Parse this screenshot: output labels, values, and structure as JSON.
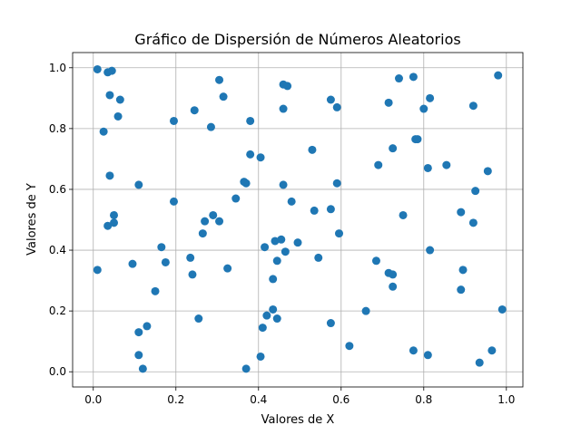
{
  "chart_data": {
    "type": "scatter",
    "title": "Gráfico de Dispersión de Números Aleatorios",
    "xlabel": "Valores de X",
    "ylabel": "Valores de Y",
    "xlim": [
      -0.05,
      1.04
    ],
    "ylim": [
      -0.05,
      1.05
    ],
    "xticks": [
      "0.0",
      "0.2",
      "0.4",
      "0.6",
      "0.8",
      "1.0"
    ],
    "yticks": [
      "0.0",
      "0.2",
      "0.4",
      "0.6",
      "0.8",
      "1.0"
    ],
    "grid": true,
    "marker_color": "#1f77b4",
    "points": [
      {
        "x": 0.01,
        "y": 0.995
      },
      {
        "x": 0.035,
        "y": 0.985
      },
      {
        "x": 0.045,
        "y": 0.99
      },
      {
        "x": 0.025,
        "y": 0.79
      },
      {
        "x": 0.04,
        "y": 0.91
      },
      {
        "x": 0.065,
        "y": 0.895
      },
      {
        "x": 0.06,
        "y": 0.84
      },
      {
        "x": 0.04,
        "y": 0.645
      },
      {
        "x": 0.05,
        "y": 0.515
      },
      {
        "x": 0.035,
        "y": 0.48
      },
      {
        "x": 0.05,
        "y": 0.49
      },
      {
        "x": 0.01,
        "y": 0.335
      },
      {
        "x": 0.11,
        "y": 0.615
      },
      {
        "x": 0.095,
        "y": 0.355
      },
      {
        "x": 0.165,
        "y": 0.41
      },
      {
        "x": 0.175,
        "y": 0.36
      },
      {
        "x": 0.15,
        "y": 0.265
      },
      {
        "x": 0.13,
        "y": 0.15
      },
      {
        "x": 0.11,
        "y": 0.13
      },
      {
        "x": 0.11,
        "y": 0.055
      },
      {
        "x": 0.12,
        "y": 0.01
      },
      {
        "x": 0.195,
        "y": 0.825
      },
      {
        "x": 0.195,
        "y": 0.56
      },
      {
        "x": 0.245,
        "y": 0.86
      },
      {
        "x": 0.285,
        "y": 0.805
      },
      {
        "x": 0.305,
        "y": 0.96
      },
      {
        "x": 0.315,
        "y": 0.905
      },
      {
        "x": 0.27,
        "y": 0.495
      },
      {
        "x": 0.29,
        "y": 0.515
      },
      {
        "x": 0.305,
        "y": 0.495
      },
      {
        "x": 0.265,
        "y": 0.455
      },
      {
        "x": 0.235,
        "y": 0.375
      },
      {
        "x": 0.24,
        "y": 0.32
      },
      {
        "x": 0.255,
        "y": 0.175
      },
      {
        "x": 0.325,
        "y": 0.34
      },
      {
        "x": 0.345,
        "y": 0.57
      },
      {
        "x": 0.365,
        "y": 0.625
      },
      {
        "x": 0.37,
        "y": 0.62
      },
      {
        "x": 0.38,
        "y": 0.825
      },
      {
        "x": 0.38,
        "y": 0.715
      },
      {
        "x": 0.405,
        "y": 0.705
      },
      {
        "x": 0.37,
        "y": 0.01
      },
      {
        "x": 0.405,
        "y": 0.05
      },
      {
        "x": 0.415,
        "y": 0.41
      },
      {
        "x": 0.44,
        "y": 0.43
      },
      {
        "x": 0.455,
        "y": 0.435
      },
      {
        "x": 0.445,
        "y": 0.365
      },
      {
        "x": 0.465,
        "y": 0.395
      },
      {
        "x": 0.435,
        "y": 0.305
      },
      {
        "x": 0.435,
        "y": 0.205
      },
      {
        "x": 0.42,
        "y": 0.185
      },
      {
        "x": 0.445,
        "y": 0.175
      },
      {
        "x": 0.41,
        "y": 0.145
      },
      {
        "x": 0.46,
        "y": 0.945
      },
      {
        "x": 0.47,
        "y": 0.94
      },
      {
        "x": 0.46,
        "y": 0.865
      },
      {
        "x": 0.46,
        "y": 0.615
      },
      {
        "x": 0.48,
        "y": 0.56
      },
      {
        "x": 0.495,
        "y": 0.425
      },
      {
        "x": 0.53,
        "y": 0.73
      },
      {
        "x": 0.535,
        "y": 0.53
      },
      {
        "x": 0.545,
        "y": 0.375
      },
      {
        "x": 0.575,
        "y": 0.895
      },
      {
        "x": 0.59,
        "y": 0.87
      },
      {
        "x": 0.59,
        "y": 0.62
      },
      {
        "x": 0.575,
        "y": 0.535
      },
      {
        "x": 0.595,
        "y": 0.455
      },
      {
        "x": 0.575,
        "y": 0.16
      },
      {
        "x": 0.62,
        "y": 0.085
      },
      {
        "x": 0.66,
        "y": 0.2
      },
      {
        "x": 0.685,
        "y": 0.365
      },
      {
        "x": 0.69,
        "y": 0.68
      },
      {
        "x": 0.715,
        "y": 0.885
      },
      {
        "x": 0.74,
        "y": 0.965
      },
      {
        "x": 0.725,
        "y": 0.735
      },
      {
        "x": 0.715,
        "y": 0.325
      },
      {
        "x": 0.725,
        "y": 0.32
      },
      {
        "x": 0.725,
        "y": 0.28
      },
      {
        "x": 0.75,
        "y": 0.515
      },
      {
        "x": 0.775,
        "y": 0.97
      },
      {
        "x": 0.78,
        "y": 0.765
      },
      {
        "x": 0.785,
        "y": 0.765
      },
      {
        "x": 0.8,
        "y": 0.865
      },
      {
        "x": 0.815,
        "y": 0.9
      },
      {
        "x": 0.81,
        "y": 0.67
      },
      {
        "x": 0.815,
        "y": 0.4
      },
      {
        "x": 0.775,
        "y": 0.07
      },
      {
        "x": 0.81,
        "y": 0.055
      },
      {
        "x": 0.855,
        "y": 0.68
      },
      {
        "x": 0.92,
        "y": 0.875
      },
      {
        "x": 0.925,
        "y": 0.595
      },
      {
        "x": 0.89,
        "y": 0.525
      },
      {
        "x": 0.92,
        "y": 0.49
      },
      {
        "x": 0.895,
        "y": 0.335
      },
      {
        "x": 0.89,
        "y": 0.27
      },
      {
        "x": 0.955,
        "y": 0.66
      },
      {
        "x": 0.98,
        "y": 0.975
      },
      {
        "x": 0.99,
        "y": 0.205
      },
      {
        "x": 0.965,
        "y": 0.07
      },
      {
        "x": 0.935,
        "y": 0.03
      }
    ]
  }
}
